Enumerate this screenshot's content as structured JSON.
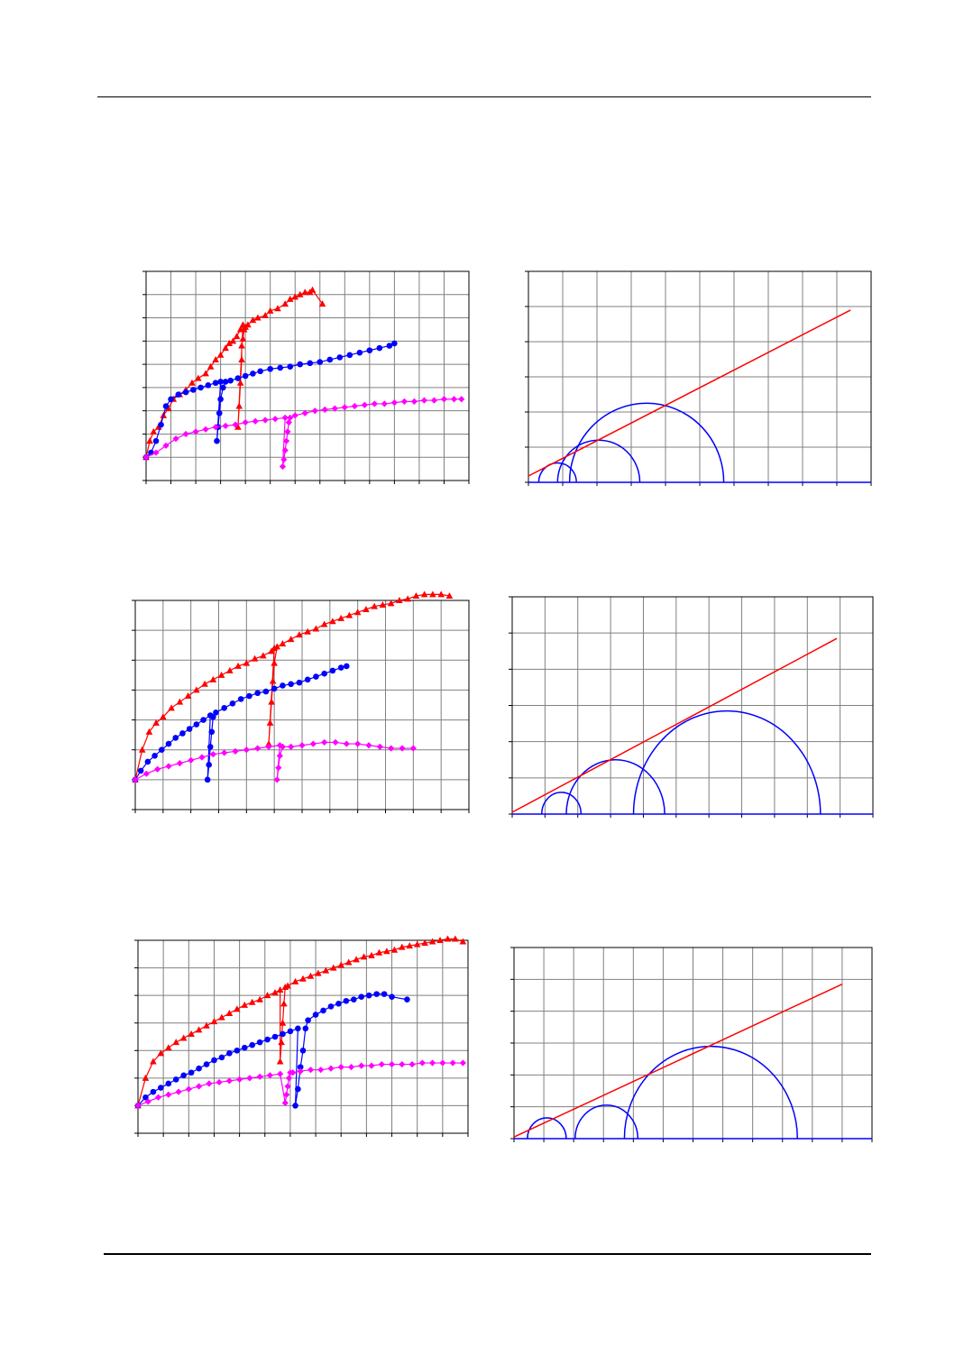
{
  "page": {
    "header_rule": true,
    "footer_rule": true
  },
  "chart_data": [
    {
      "type": "line",
      "row": 1,
      "kind": "stress-strain curves",
      "x_divisions": 13,
      "y_divisions": 9,
      "grid": true,
      "xlim": [
        0,
        13
      ],
      "ylim": [
        0,
        9
      ],
      "series": [
        {
          "color": "#ff0000",
          "marker": "triangle",
          "x": [
            0.0,
            0.15,
            0.3,
            0.5,
            0.7,
            0.9,
            1.1,
            1.35,
            1.6,
            1.85,
            2.1,
            2.4,
            2.6,
            2.8,
            3.0,
            3.2,
            3.35,
            3.5,
            3.65,
            3.8,
            3.9,
            3.7,
            3.75,
            3.8,
            3.85,
            3.85,
            3.9,
            3.95,
            4.0,
            4.1,
            4.3,
            4.5,
            4.8,
            5.0,
            5.3,
            5.6,
            5.8,
            6.0,
            6.2,
            6.4,
            6.6,
            6.7,
            7.1
          ],
          "y": [
            1.0,
            1.7,
            2.1,
            2.3,
            2.8,
            3.1,
            3.5,
            3.7,
            3.9,
            4.2,
            4.4,
            4.6,
            4.9,
            5.2,
            5.4,
            5.7,
            5.9,
            6.0,
            6.2,
            6.5,
            6.7,
            2.3,
            3.2,
            4.2,
            5.2,
            5.8,
            6.1,
            6.5,
            6.6,
            6.7,
            6.9,
            7.0,
            7.1,
            7.3,
            7.4,
            7.6,
            7.8,
            7.9,
            8.0,
            8.1,
            8.1,
            8.2,
            7.6
          ]
        },
        {
          "color": "#0000ff",
          "marker": "circle",
          "x": [
            0.0,
            0.2,
            0.4,
            0.6,
            0.8,
            1.0,
            1.3,
            1.6,
            1.9,
            2.2,
            2.5,
            2.8,
            3.0,
            2.85,
            2.9,
            2.95,
            3.0,
            3.1,
            3.2,
            3.4,
            3.7,
            4.0,
            4.3,
            4.6,
            5.0,
            5.4,
            5.8,
            6.2,
            6.6,
            7.0,
            7.4,
            7.8,
            8.2,
            8.6,
            9.0,
            9.4,
            9.8,
            10.0
          ],
          "y": [
            1.0,
            1.2,
            1.7,
            2.4,
            3.2,
            3.5,
            3.7,
            3.8,
            3.9,
            4.0,
            4.1,
            4.2,
            4.25,
            1.7,
            2.3,
            2.9,
            3.5,
            4.0,
            4.25,
            4.3,
            4.4,
            4.5,
            4.6,
            4.7,
            4.8,
            4.85,
            4.9,
            5.0,
            5.05,
            5.1,
            5.2,
            5.3,
            5.4,
            5.5,
            5.6,
            5.7,
            5.8,
            5.9
          ]
        },
        {
          "color": "#ff00ff",
          "marker": "diamond",
          "x": [
            0.0,
            0.4,
            0.8,
            1.2,
            1.6,
            2.0,
            2.4,
            2.8,
            3.2,
            3.6,
            4.0,
            4.4,
            4.8,
            5.2,
            5.6,
            5.5,
            5.55,
            5.6,
            5.65,
            5.7,
            5.75,
            5.8,
            6.0,
            6.4,
            6.8,
            7.2,
            7.6,
            8.0,
            8.4,
            8.8,
            9.2,
            9.6,
            10.0,
            10.4,
            10.8,
            11.2,
            11.6,
            12.0,
            12.4,
            12.7
          ],
          "y": [
            1.0,
            1.2,
            1.5,
            1.8,
            2.0,
            2.1,
            2.2,
            2.3,
            2.35,
            2.4,
            2.5,
            2.55,
            2.6,
            2.65,
            2.7,
            0.6,
            0.9,
            1.3,
            1.7,
            2.1,
            2.5,
            2.7,
            2.8,
            2.9,
            3.0,
            3.05,
            3.1,
            3.15,
            3.2,
            3.25,
            3.3,
            3.3,
            3.35,
            3.4,
            3.4,
            3.45,
            3.45,
            3.5,
            3.5,
            3.5
          ]
        }
      ]
    },
    {
      "type": "line",
      "row": 1,
      "kind": "Mohr circles with failure envelope",
      "x_divisions": 10,
      "y_divisions": 6,
      "grid": true,
      "xlim": [
        0,
        10
      ],
      "ylim": [
        0,
        6
      ],
      "circles": [
        {
          "center": 0.85,
          "radius": 0.55
        },
        {
          "center": 2.05,
          "radius": 1.2
        },
        {
          "center": 3.45,
          "radius": 2.25
        }
      ],
      "envelope": {
        "color": "#ff0000",
        "x": [
          0.0,
          9.4
        ],
        "y": [
          0.18,
          4.9
        ]
      }
    },
    {
      "type": "line",
      "row": 2,
      "kind": "stress-strain curves",
      "x_divisions": 12,
      "y_divisions": 7,
      "grid": true,
      "xlim": [
        0,
        12
      ],
      "ylim": [
        0,
        7
      ],
      "series": [
        {
          "color": "#ff0000",
          "marker": "triangle",
          "x": [
            0.0,
            0.25,
            0.5,
            0.75,
            1.0,
            1.3,
            1.6,
            1.9,
            2.2,
            2.5,
            2.8,
            3.1,
            3.4,
            3.7,
            4.0,
            4.3,
            4.6,
            4.9,
            5.0,
            4.8,
            4.85,
            4.9,
            4.95,
            5.0,
            5.1,
            5.3,
            5.6,
            5.9,
            6.2,
            6.5,
            6.8,
            7.1,
            7.4,
            7.7,
            8.0,
            8.3,
            8.6,
            8.9,
            9.2,
            9.5,
            9.8,
            10.1,
            10.4,
            10.7,
            11.0,
            11.3
          ],
          "y": [
            1.0,
            2.0,
            2.6,
            2.9,
            3.1,
            3.4,
            3.6,
            3.8,
            4.0,
            4.2,
            4.35,
            4.5,
            4.65,
            4.8,
            4.9,
            5.05,
            5.15,
            5.3,
            5.4,
            2.2,
            2.9,
            3.6,
            4.3,
            4.9,
            5.45,
            5.55,
            5.7,
            5.85,
            5.95,
            6.05,
            6.2,
            6.3,
            6.4,
            6.5,
            6.6,
            6.7,
            6.8,
            6.85,
            6.9,
            7.0,
            7.05,
            7.15,
            7.2,
            7.2,
            7.2,
            7.15
          ]
        },
        {
          "color": "#0000ff",
          "marker": "circle",
          "x": [
            0.0,
            0.2,
            0.45,
            0.7,
            0.95,
            1.2,
            1.45,
            1.7,
            1.95,
            2.2,
            2.45,
            2.7,
            2.6,
            2.65,
            2.7,
            2.75,
            2.8,
            2.9,
            3.2,
            3.5,
            3.8,
            4.1,
            4.4,
            4.7,
            5.0,
            5.3,
            5.6,
            5.9,
            6.2,
            6.5,
            6.8,
            7.1,
            7.4,
            7.6
          ],
          "y": [
            1.0,
            1.3,
            1.6,
            1.8,
            2.0,
            2.2,
            2.4,
            2.55,
            2.7,
            2.85,
            3.0,
            3.15,
            1.0,
            1.5,
            2.1,
            2.6,
            3.1,
            3.25,
            3.4,
            3.55,
            3.7,
            3.8,
            3.9,
            3.95,
            4.05,
            4.15,
            4.2,
            4.25,
            4.35,
            4.45,
            4.55,
            4.65,
            4.75,
            4.8
          ]
        },
        {
          "color": "#ff00ff",
          "marker": "diamond",
          "x": [
            0.0,
            0.4,
            0.8,
            1.2,
            1.6,
            2.0,
            2.4,
            2.8,
            3.2,
            3.6,
            4.0,
            4.4,
            4.8,
            5.2,
            5.1,
            5.15,
            5.2,
            5.3,
            5.6,
            6.0,
            6.4,
            6.8,
            7.2,
            7.6,
            8.0,
            8.4,
            8.8,
            9.2,
            9.6,
            10.0
          ],
          "y": [
            1.0,
            1.2,
            1.35,
            1.45,
            1.55,
            1.65,
            1.75,
            1.85,
            1.9,
            1.95,
            2.0,
            2.05,
            2.1,
            2.15,
            1.0,
            1.4,
            1.8,
            2.1,
            2.1,
            2.15,
            2.2,
            2.25,
            2.25,
            2.2,
            2.2,
            2.15,
            2.1,
            2.05,
            2.05,
            2.05
          ]
        }
      ]
    },
    {
      "type": "line",
      "row": 2,
      "kind": "Mohr circles with failure envelope",
      "x_divisions": 11,
      "y_divisions": 6,
      "grid": true,
      "xlim": [
        0,
        11
      ],
      "ylim": [
        0,
        6
      ],
      "circles": [
        {
          "center": 1.5,
          "radius": 0.6
        },
        {
          "center": 3.15,
          "radius": 1.5
        },
        {
          "center": 6.55,
          "radius": 2.85
        }
      ],
      "envelope": {
        "color": "#ff0000",
        "x": [
          0.0,
          9.9
        ],
        "y": [
          0.05,
          4.85
        ]
      }
    },
    {
      "type": "line",
      "row": 3,
      "kind": "stress-strain curves",
      "x_divisions": 13,
      "y_divisions": 7,
      "grid": true,
      "xlim": [
        0,
        13
      ],
      "ylim": [
        0,
        7
      ],
      "series": [
        {
          "color": "#ff0000",
          "marker": "triangle",
          "x": [
            0.0,
            0.3,
            0.6,
            0.9,
            1.2,
            1.5,
            1.8,
            2.1,
            2.4,
            2.7,
            3.0,
            3.3,
            3.6,
            3.9,
            4.2,
            4.5,
            4.8,
            5.1,
            5.4,
            5.6,
            5.6,
            5.65,
            5.7,
            5.75,
            5.8,
            5.9,
            6.2,
            6.5,
            6.8,
            7.1,
            7.4,
            7.7,
            8.0,
            8.3,
            8.6,
            8.9,
            9.2,
            9.5,
            9.8,
            10.1,
            10.4,
            10.7,
            11.0,
            11.3,
            11.6,
            11.9,
            12.2,
            12.5,
            12.8
          ],
          "y": [
            1.0,
            2.0,
            2.6,
            2.9,
            3.1,
            3.3,
            3.45,
            3.6,
            3.75,
            3.9,
            4.05,
            4.2,
            4.35,
            4.5,
            4.65,
            4.75,
            4.85,
            5.0,
            5.1,
            5.2,
            2.6,
            3.3,
            4.0,
            4.7,
            5.3,
            5.35,
            5.5,
            5.6,
            5.7,
            5.8,
            5.9,
            6.0,
            6.1,
            6.2,
            6.3,
            6.4,
            6.45,
            6.55,
            6.6,
            6.65,
            6.75,
            6.8,
            6.85,
            6.9,
            6.95,
            7.0,
            7.05,
            7.05,
            6.95
          ]
        },
        {
          "color": "#0000ff",
          "marker": "circle",
          "x": [
            0.0,
            0.3,
            0.6,
            0.9,
            1.2,
            1.5,
            1.8,
            2.1,
            2.4,
            2.7,
            3.0,
            3.3,
            3.6,
            3.9,
            4.2,
            4.5,
            4.8,
            5.1,
            5.4,
            5.7,
            6.0,
            6.3,
            6.2,
            6.3,
            6.4,
            6.5,
            6.6,
            6.7,
            7.0,
            7.3,
            7.6,
            7.9,
            8.2,
            8.5,
            8.8,
            9.1,
            9.4,
            9.7,
            10.0,
            10.6
          ],
          "y": [
            1.0,
            1.3,
            1.5,
            1.65,
            1.8,
            1.95,
            2.1,
            2.2,
            2.35,
            2.5,
            2.65,
            2.75,
            2.9,
            3.0,
            3.1,
            3.2,
            3.3,
            3.4,
            3.5,
            3.6,
            3.7,
            3.8,
            1.0,
            1.6,
            2.4,
            3.0,
            3.8,
            4.1,
            4.3,
            4.45,
            4.6,
            4.7,
            4.8,
            4.85,
            4.95,
            5.0,
            5.05,
            5.05,
            4.95,
            4.85
          ]
        },
        {
          "color": "#ff00ff",
          "marker": "diamond",
          "x": [
            0.0,
            0.4,
            0.8,
            1.2,
            1.6,
            2.0,
            2.4,
            2.8,
            3.2,
            3.6,
            4.0,
            4.4,
            4.8,
            5.2,
            5.6,
            5.8,
            5.85,
            5.9,
            5.95,
            6.0,
            6.1,
            6.4,
            6.8,
            7.2,
            7.6,
            8.0,
            8.4,
            8.8,
            9.2,
            9.6,
            10.0,
            10.4,
            10.8,
            11.2,
            11.6,
            12.0,
            12.4,
            12.8
          ],
          "y": [
            1.0,
            1.15,
            1.3,
            1.4,
            1.5,
            1.6,
            1.7,
            1.8,
            1.85,
            1.9,
            1.95,
            2.0,
            2.05,
            2.1,
            2.15,
            1.1,
            1.4,
            1.7,
            2.0,
            2.2,
            2.2,
            2.25,
            2.3,
            2.3,
            2.35,
            2.4,
            2.4,
            2.45,
            2.45,
            2.5,
            2.5,
            2.5,
            2.5,
            2.55,
            2.55,
            2.55,
            2.55,
            2.55
          ]
        }
      ]
    },
    {
      "type": "line",
      "row": 3,
      "kind": "Mohr circles with failure envelope",
      "x_divisions": 12,
      "y_divisions": 6,
      "grid": true,
      "xlim": [
        0,
        12
      ],
      "ylim": [
        0,
        6
      ],
      "circles": [
        {
          "center": 1.1,
          "radius": 0.65
        },
        {
          "center": 3.1,
          "radius": 1.05
        },
        {
          "center": 6.6,
          "radius": 2.9
        }
      ],
      "envelope": {
        "color": "#ff0000",
        "x": [
          0.0,
          11.0
        ],
        "y": [
          0.05,
          4.85
        ]
      }
    }
  ]
}
